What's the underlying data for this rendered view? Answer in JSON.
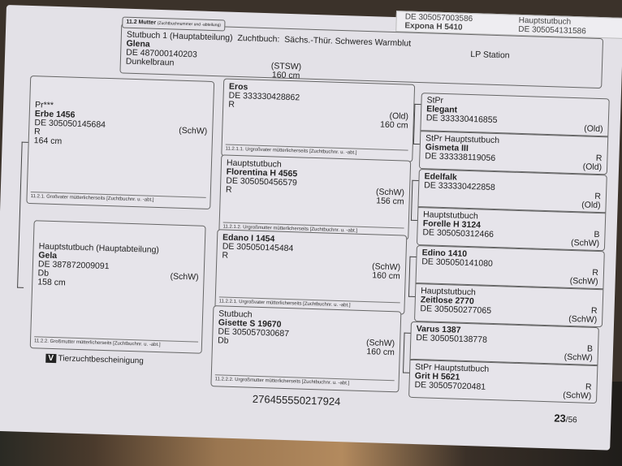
{
  "overlap_page": {
    "lines": [
      "Hauptstutbuch",
      "Expona H 5410",
      "DE 305054131586",
      "DE 305057003586"
    ]
  },
  "mother": {
    "tab": "11.2 Mutter",
    "tab_note": "(Zuchtbuchnummer und -abteilung)",
    "book": "Stutbuch 1 (Hauptabteilung)",
    "studbook_label": "Zuchtbuch:",
    "studbook": "Sächs.-Thür. Schweres Warmblut",
    "lp": "LP Station",
    "name": "Glena",
    "id": "DE 487000140203",
    "color": "Dunkelbraun",
    "breed": "(STSW)",
    "height": "160 cm"
  },
  "grandparents": [
    {
      "prefix": "Pr***",
      "name": "Erbe 1456",
      "id": "DE 305050145684",
      "color": "R",
      "height": "164 cm",
      "breed": "(SchW)",
      "caption": "11.2.1. Großvater mütterlicherseits [Zuchtbuchnr. u. -abt.]"
    },
    {
      "prefix": "Hauptstutbuch (Hauptabteilung)",
      "name": "Gela",
      "id": "DE 387872009091",
      "color": "Db",
      "height": "158 cm",
      "breed": "(SchW)",
      "caption": "11.2.2. Großmutter mütterlicherseits [Zuchtbuchnr. u. -abt.]"
    }
  ],
  "great_grandparents": [
    {
      "prefix": "",
      "name": "Eros",
      "id": "DE 333330428862",
      "color": "R",
      "breed": "(Old)",
      "height": "160 cm",
      "caption": "11.2.1.1. Urgroßvater mütterlicherseits [Zuchtbuchnr. u. -abt.]"
    },
    {
      "prefix": "Hauptstutbuch",
      "name": "Florentina H 4565",
      "id": "DE 305050456579",
      "color": "R",
      "breed": "(SchW)",
      "height": "156 cm",
      "caption": "11.2.1.2. Urgroßmutter mütterlicherseits [Zuchtbuchnr. u. -abt.]"
    },
    {
      "prefix": "",
      "name": "Edano I 1454",
      "id": "DE 305050145484",
      "color": "R",
      "breed": "(SchW)",
      "height": "160 cm",
      "caption": "11.2.2.1. Urgroßvater mütterlicherseits [Zuchtbuchnr. u. -abt.]"
    },
    {
      "prefix": "Stutbuch",
      "name": "Gisette S 19670",
      "id": "DE 305057030687",
      "color": "Db",
      "breed": "(SchW)",
      "height": "160 cm",
      "caption": "11.2.2.2. Urgroßmutter mütterlicherseits [Zuchtbuchnr. u. -abt.]"
    }
  ],
  "gen4": [
    {
      "prefix": "StPr",
      "name": "Elegant",
      "id": "DE 333330416855",
      "color": "",
      "breed": "(Old)"
    },
    {
      "prefix": "StPr  Hauptstutbuch",
      "name": "Gismeta III",
      "id": "DE 333338119056",
      "color": "R",
      "breed": "(Old)"
    },
    {
      "prefix": "",
      "name": "Edelfalk",
      "id": "DE 333330422858",
      "color": "R",
      "breed": "(Old)"
    },
    {
      "prefix": "Hauptstutbuch",
      "name": "Forelle H 3124",
      "id": "DE 305050312466",
      "color": "B",
      "breed": "(SchW)"
    },
    {
      "prefix": "",
      "name": "Edino 1410",
      "id": "DE 305050141080",
      "color": "R",
      "breed": "(SchW)"
    },
    {
      "prefix": "Hauptstutbuch",
      "name": "Zeitlose 2770",
      "id": "DE 305050277065",
      "color": "R",
      "breed": "(SchW)"
    },
    {
      "prefix": "",
      "name": "Varus 1387",
      "id": "DE 305050138778",
      "color": "B",
      "breed": "(SchW)"
    },
    {
      "prefix": "StPr  Hauptstutbuch",
      "name": "Grit H 5621",
      "id": "DE 305057020481",
      "color": "R",
      "breed": "(SchW)"
    }
  ],
  "footer": {
    "logo_letter": "V",
    "label": "Tierzuchtbescheinigung",
    "code": "276455550217924",
    "page": "23",
    "total": "/56"
  }
}
